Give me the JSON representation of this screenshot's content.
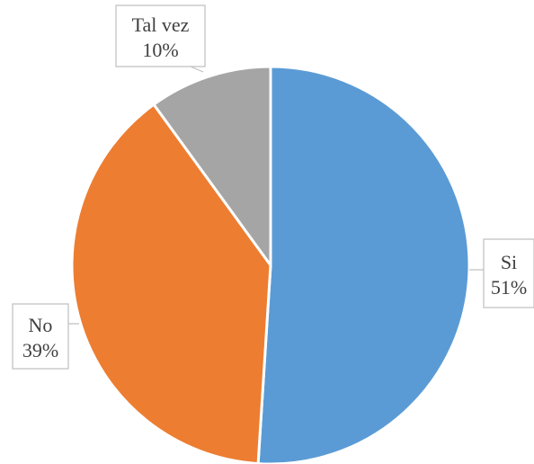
{
  "chart_data": {
    "type": "pie",
    "title": "",
    "categories": [
      "Si",
      "No",
      "Tal vez"
    ],
    "values": [
      51,
      39,
      10
    ],
    "value_labels": [
      "51%",
      "39%",
      "10%"
    ],
    "colors": [
      "#5b9bd5",
      "#ed7d31",
      "#a5a5a5"
    ],
    "start_angle": "12 o'clock",
    "direction": "clockwise",
    "legend": "none",
    "data_labels": "callouts"
  }
}
